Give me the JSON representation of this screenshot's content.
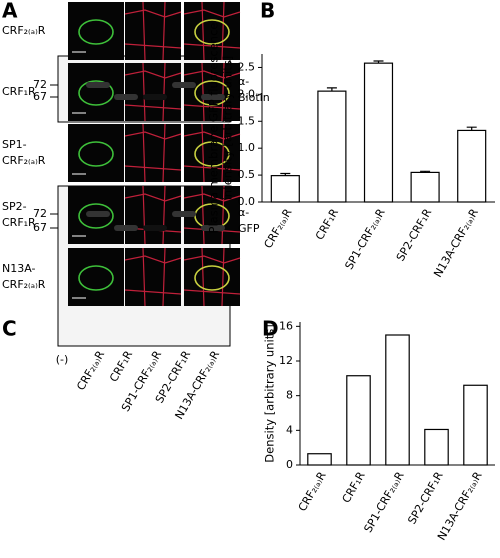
{
  "panel_labels": [
    "A",
    "B",
    "C",
    "D"
  ],
  "micrographs": {
    "row_labels": [
      [
        "CRF₂₍ₐ₎R"
      ],
      [
        "CRF₁R"
      ],
      [
        "SP1-",
        "CRF₂₍ₐ₎R"
      ],
      [
        "SP2-",
        "CRF₁R"
      ],
      [
        "N13A-",
        "CRF₂₍ₐ₎R"
      ]
    ]
  },
  "blots": {
    "top": {
      "markers": [
        "72",
        "67"
      ],
      "antibody": [
        "α-",
        "Biotin"
      ]
    },
    "bottom": {
      "markers": [
        "72",
        "67"
      ],
      "antibody": [
        "α-",
        "GFP"
      ]
    },
    "lanes": [
      "(-)",
      "CRF₂₍ₐ₎R",
      "CRF₁R",
      "SP1-CRF₂₍ₐ₎R",
      "SP2-CRF₁R",
      "N13A-CRF₂₍ₐ₎R"
    ]
  },
  "chart_data": [
    {
      "type": "bar",
      "y_label": [
        "Plasma membrane GFP fluorescence",
        "intensity [arbitrary units]"
      ],
      "categories": [
        "CRF₂₍ₐ₎R",
        "CRF₁R",
        "SP1-CRF₂₍ₐ₎R",
        "SP2-CRF₁R",
        "N13A-CRF₂₍ₐ₎R"
      ],
      "values": [
        0.49,
        2.06,
        2.58,
        0.55,
        1.33
      ],
      "errors": [
        0.04,
        0.06,
        0.04,
        0.02,
        0.06
      ],
      "color": "#ffffff",
      "ylim": [
        0,
        2.75
      ],
      "yticks": [
        {
          "value": 0,
          "label": "0.0"
        },
        0.5,
        {
          "value": 1,
          "label": "1.0"
        },
        1.5,
        {
          "value": 2,
          "label": "2.0"
        },
        2.5
      ]
    },
    {
      "type": "bar",
      "y_label": [
        "Density [arbitrary units]"
      ],
      "categories": [
        "CRF₂₍ₐ₎R",
        "CRF₁R",
        "SP1-CRF₂₍ₐ₎R",
        "SP2-CRF₁R",
        "N13A-CRF₂₍ₐ₎R"
      ],
      "values": [
        1.3,
        10.3,
        15.0,
        4.1,
        9.2
      ],
      "color": "#ffffff",
      "ylim": [
        0,
        16.5
      ],
      "yticks": [
        0,
        4,
        8,
        12,
        16
      ]
    }
  ]
}
